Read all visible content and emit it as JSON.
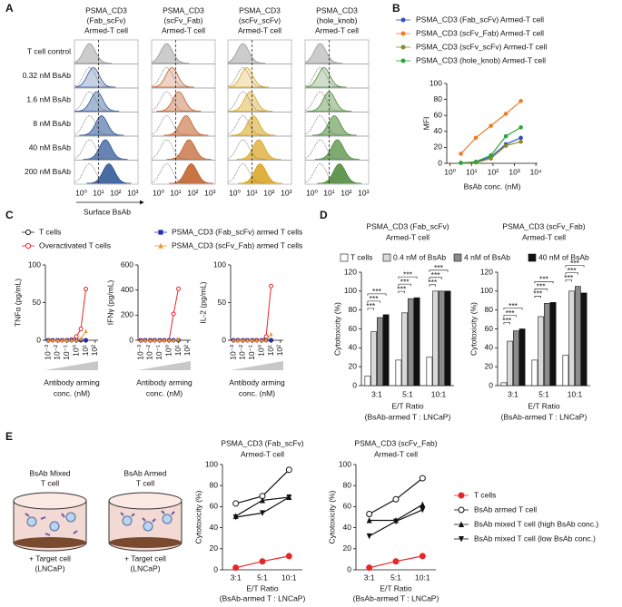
{
  "panel_labels": [
    "A",
    "B",
    "C",
    "D",
    "E"
  ],
  "diagram_E": {
    "groups": [
      {
        "label": [
          "BsAb Mixed",
          "T cell"
        ],
        "target": [
          "+ Target cell",
          "(LNCaP)"
        ]
      },
      {
        "label": [
          "BsAb Armed",
          "T cell"
        ],
        "target": [
          "+ Target cell",
          "(LNCaP)"
        ]
      }
    ]
  },
  "chart_data": [
    {
      "type": "histogram-grid",
      "titles": [
        [
          "PSMA_CD3",
          "(Fab_scFv)",
          "Armed-T cell"
        ],
        [
          "PSMA_CD3",
          "(scFv_Fab)",
          "Armed-T cell"
        ],
        [
          "PSMA_CD3",
          "(scFv_scFv)",
          "Armed-T cell"
        ],
        [
          "PSMA_CD3",
          "(hole_knob)",
          "Armed-T cell"
        ]
      ],
      "rows": [
        "T cell control",
        "0.32 nM BsAb",
        "1.6 nM BsAb",
        "8 nM BsAb",
        "40 nM BsAb",
        "200 nM BsAb"
      ],
      "colors": [
        "#2e5597",
        "#c0612b",
        "#d9a521",
        "#4e8a3a"
      ],
      "control_color": "#9a9a9a",
      "peaks": [
        [
          3,
          5,
          8,
          15,
          25,
          40
        ],
        [
          3,
          6,
          15,
          40,
          60,
          80
        ],
        [
          3,
          5,
          8,
          12,
          25,
          30
        ],
        [
          3,
          5,
          10,
          20,
          30,
          40
        ]
      ],
      "log_x": true,
      "xlim": [
        0.4,
        2000
      ],
      "xticks": [
        {
          "value": 1,
          "label": "10⁰"
        },
        {
          "value": 10,
          "label": "10¹"
        },
        {
          "value": 100,
          "label": "10²"
        },
        {
          "value": 1000,
          "label": "10³"
        }
      ],
      "reference_line": 10,
      "xlabel": "Surface BsAb"
    },
    {
      "type": "line",
      "log_x": true,
      "x": [
        3.2,
        16,
        80,
        400,
        2000
      ],
      "xlim": [
        0.7,
        12000
      ],
      "xticks": [
        {
          "value": 1,
          "label": "10⁰"
        },
        {
          "value": 10,
          "label": "10¹"
        },
        {
          "value": 100,
          "label": "10²"
        },
        {
          "value": 1000,
          "label": "10³"
        },
        {
          "value": 10000,
          "label": "10⁴"
        }
      ],
      "ylim": [
        0,
        100
      ],
      "yticks": [
        0,
        20,
        40,
        60,
        80,
        100
      ],
      "ylabel": "MFI",
      "xlabel": "BsAb conc. (nM)",
      "series": [
        {
          "name": "PSMA_CD3 (Fab_scFv) Armed-T cell",
          "color": "#2f4fc4",
          "values": [
            0.5,
            1.5,
            8,
            24,
            32
          ]
        },
        {
          "name": "PSMA_CD3 (scFv_Fab) Armed-T cell",
          "color": "#f07a2a",
          "values": [
            12,
            32,
            47,
            62,
            78
          ]
        },
        {
          "name": "PSMA_CD3 (scFv_scFv) Armed-T cell",
          "color": "#8a8a2a",
          "values": [
            0.5,
            1,
            6,
            22,
            27
          ]
        },
        {
          "name": "PSMA_CD3 (hole_knob) Armed-T cell",
          "color": "#2ea33a",
          "values": [
            0.5,
            2,
            10,
            34,
            45
          ]
        }
      ]
    },
    {
      "type": "cytokine",
      "log_x": true,
      "x": [
        0.001,
        0.003,
        0.01,
        0.03,
        0.1,
        0.3,
        1,
        3,
        10
      ],
      "xlim": [
        0.0005,
        200
      ],
      "xticks": [
        {
          "value": 0.001,
          "label": "10⁻³"
        },
        {
          "value": 0.01,
          "label": "10⁻²"
        },
        {
          "value": 0.1,
          "label": "10⁻¹"
        },
        {
          "value": 1,
          "label": "10⁰"
        },
        {
          "value": 10,
          "label": "10¹"
        },
        {
          "value": 100,
          "label": "10²"
        }
      ],
      "xlabel": [
        "Antibody arming",
        "conc. (nM)"
      ],
      "legend": [
        {
          "name": "T cells",
          "color": "#222222",
          "marker": "circle-open"
        },
        {
          "name": "Overactivated T cells",
          "color": "#e8262a",
          "marker": "circle-open"
        },
        {
          "name": "PSMA_CD3 (Fab_scFv) armed T cells",
          "color": "#1f2fb0",
          "marker": "square"
        },
        {
          "name": "PSMA_CD3 (scFv_Fab) armed T cells",
          "color": "#f0922a",
          "marker": "triangle-up"
        }
      ],
      "subplots": [
        {
          "ylabel": "TNFα (pg/mL)",
          "ylim": [
            0,
            100
          ],
          "yticks": [
            0,
            50,
            100
          ],
          "values": [
            [
              0,
              0,
              0,
              0,
              0,
              0,
              0,
              0,
              0
            ],
            [
              0,
              0,
              0,
              0,
              0,
              1,
              5,
              15,
              68
            ],
            [
              0,
              0,
              0,
              0,
              0,
              0,
              0,
              0,
              0
            ],
            [
              0,
              0,
              0,
              0,
              0,
              0,
              0,
              2,
              12
            ]
          ]
        },
        {
          "ylabel": "IFNγ (pg/mL)",
          "ylim": [
            0,
            600
          ],
          "yticks": [
            0,
            200,
            400,
            600
          ],
          "values": [
            [
              0,
              0,
              0,
              0,
              0,
              0,
              0,
              0,
              0
            ],
            [
              0,
              0,
              0,
              0,
              0,
              0,
              0,
              210,
              410
            ],
            [
              0,
              0,
              0,
              0,
              0,
              0,
              0,
              0,
              0
            ],
            [
              0,
              0,
              0,
              0,
              0,
              0,
              0,
              0,
              5
            ]
          ]
        },
        {
          "ylabel": "IL-2 (pg/mL)",
          "ylim": [
            0,
            100
          ],
          "yticks": [
            0,
            50,
            100
          ],
          "values": [
            [
              0,
              0,
              0,
              0,
              0,
              0,
              0,
              0,
              0
            ],
            [
              0,
              0,
              0,
              0,
              0,
              0,
              0,
              5,
              72
            ],
            [
              0,
              0,
              0,
              0,
              0,
              0,
              0,
              0,
              0
            ],
            [
              0,
              0,
              0,
              0,
              0,
              0,
              0,
              0,
              8
            ]
          ]
        }
      ]
    },
    {
      "type": "grouped-bar",
      "title": [
        "PSMA_CD3 (Fab_scFv)",
        "Armed-T cell"
      ],
      "categories": [
        "3:1",
        "5:1",
        "10:1"
      ],
      "ylim": [
        0,
        120
      ],
      "yticks": [
        0,
        20,
        40,
        60,
        80,
        100,
        120
      ],
      "ylabel": "Cytotoxicity (%)",
      "xlabel": [
        "E/T Ratio",
        "(BsAb-armed T : LNCaP)"
      ],
      "series": [
        {
          "name": "T cells",
          "color": "#ffffff",
          "values": [
            10,
            27,
            30
          ]
        },
        {
          "name": "0.4 nM of BsAb",
          "color": "#d9d9d9",
          "values": [
            57,
            77,
            100
          ]
        },
        {
          "name": "4 nM of BsAb",
          "color": "#8c8c8c",
          "values": [
            72,
            92,
            100
          ]
        },
        {
          "name": "40 nM of BsAb",
          "color": "#111111",
          "values": [
            75,
            93,
            100
          ]
        }
      ],
      "significance": [
        [
          "***",
          "***",
          "***"
        ],
        [
          "***",
          "***",
          "***"
        ],
        [
          "***",
          "***",
          "***"
        ]
      ]
    },
    {
      "type": "grouped-bar",
      "title": [
        "PSMA_CD3 (scFv_Fab)",
        "Armed-T cell"
      ],
      "categories": [
        "3:1",
        "5:1",
        "10:1"
      ],
      "ylim": [
        0,
        120
      ],
      "yticks": [
        0,
        20,
        40,
        60,
        80,
        100,
        120
      ],
      "ylabel": "Cytotoxicity (%)",
      "xlabel": [
        "E/T Ratio",
        "(BsAb-armed T : LNCaP)"
      ],
      "series": [
        {
          "color": "#ffffff",
          "values": [
            3,
            27,
            32
          ]
        },
        {
          "color": "#d9d9d9",
          "values": [
            47,
            73,
            100
          ]
        },
        {
          "color": "#8c8c8c",
          "values": [
            58,
            87,
            105
          ]
        },
        {
          "color": "#111111",
          "values": [
            60,
            88,
            98
          ]
        }
      ],
      "significance": [
        [
          "***",
          "***",
          "***"
        ],
        [
          "***",
          "***",
          "***"
        ],
        [
          "***",
          "***",
          "***"
        ]
      ]
    },
    {
      "type": "line-cat",
      "title": [
        "PSMA_CD3 (Fab_scFv)",
        "Armed-T cell"
      ],
      "categories": [
        "3:1",
        "5:1",
        "10:1"
      ],
      "ylim": [
        0,
        100
      ],
      "yticks": [
        0,
        20,
        40,
        60,
        80,
        100
      ],
      "ylabel": "Cytotoxicity (%)",
      "xlabel": [
        "E/T Ratio",
        "(BsAb-armed T : LNCaP)"
      ],
      "series": [
        {
          "color": "#e8262a",
          "marker": "circle-filled",
          "values": [
            2,
            8,
            13
          ]
        },
        {
          "color": "#111111",
          "marker": "circle-open",
          "values": [
            63,
            70,
            95
          ]
        },
        {
          "color": "#111111",
          "marker": "triangle-up",
          "values": [
            51,
            66,
            69
          ]
        },
        {
          "color": "#111111",
          "marker": "triangle-down",
          "values": [
            50,
            54,
            69
          ]
        }
      ]
    },
    {
      "type": "line-cat",
      "title": [
        "PSMA_CD3 (scFv_Fab)",
        "Armed-T cell"
      ],
      "categories": [
        "3:1",
        "5:1",
        "10:1"
      ],
      "ylim": [
        0,
        100
      ],
      "yticks": [
        0,
        20,
        40,
        60,
        80,
        100
      ],
      "ylabel": "Cytotoxicity (%)",
      "xlabel": [
        "E/T Ratio",
        "(BsAb-armed T : LNCaP)"
      ],
      "series": [
        {
          "name": "T cells",
          "color": "#e8262a",
          "marker": "circle-filled",
          "values": [
            2,
            8,
            13
          ]
        },
        {
          "name": "BsAb armed T cell",
          "color": "#111111",
          "marker": "circle-open",
          "values": [
            53,
            67,
            87
          ]
        },
        {
          "name": "BsAb mixed T cell (high BsAb conc.)",
          "color": "#111111",
          "marker": "triangle-up",
          "values": [
            47,
            47,
            62
          ]
        },
        {
          "name": "BsAb mixed T cell (low BsAb conc.)",
          "color": "#111111",
          "marker": "triangle-down",
          "values": [
            32,
            46,
            57
          ]
        }
      ]
    }
  ]
}
